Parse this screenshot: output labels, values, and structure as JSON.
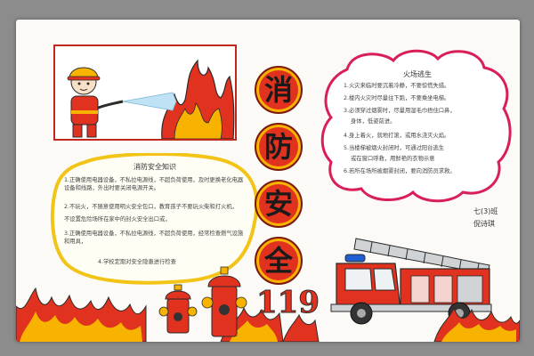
{
  "title_chars": [
    "消",
    "防",
    "安",
    "全"
  ],
  "emergency_number": "119",
  "left_blob": {
    "title": "消防安全知识",
    "lines": [
      "1.正确使用电器设备，不私拉电源线，不超负荷使用，及时更换老化电器设备和线路，外出时要关闭电源开关。",
      "2.不玩火，不随意使用明火安全包口，教育孩子不要玩火柴和打火机，",
      "不设置危险场所在家中的封火安全出口或，",
      "3.正确使用电器设备，不私拉电源线，不超负荷使用，经常检查燃气设施和用具，",
      "4.学校定期对安全隐患进行检查"
    ]
  },
  "right_blob": {
    "title": "火场逃生",
    "lines": [
      "1.火灾来临时要沉着冷静，不要惊慌失措。",
      "2.楼内火灾时尽量往下跑，不要乘坐电梯。",
      "3.必须穿过烟雾时，尽量用湿毛巾捂住口鼻，",
      "身体，低姿前进。",
      "4.身上着火，就地打滚，或用水浇灭火焰。",
      "5.当楼梯被烟火封闭时，可通过阳台逃生",
      "或在窗口呼救，用鲜艳的衣物示意",
      "6.若所在场所被烟雾封闭，要向消防员求救。"
    ]
  },
  "signature": {
    "class_label": "七(3)班",
    "name": "倪诗琪"
  },
  "colors": {
    "fire_red": "#e0321f",
    "flame_yellow": "#f7b300",
    "outline": "#2b2b2b"
  }
}
